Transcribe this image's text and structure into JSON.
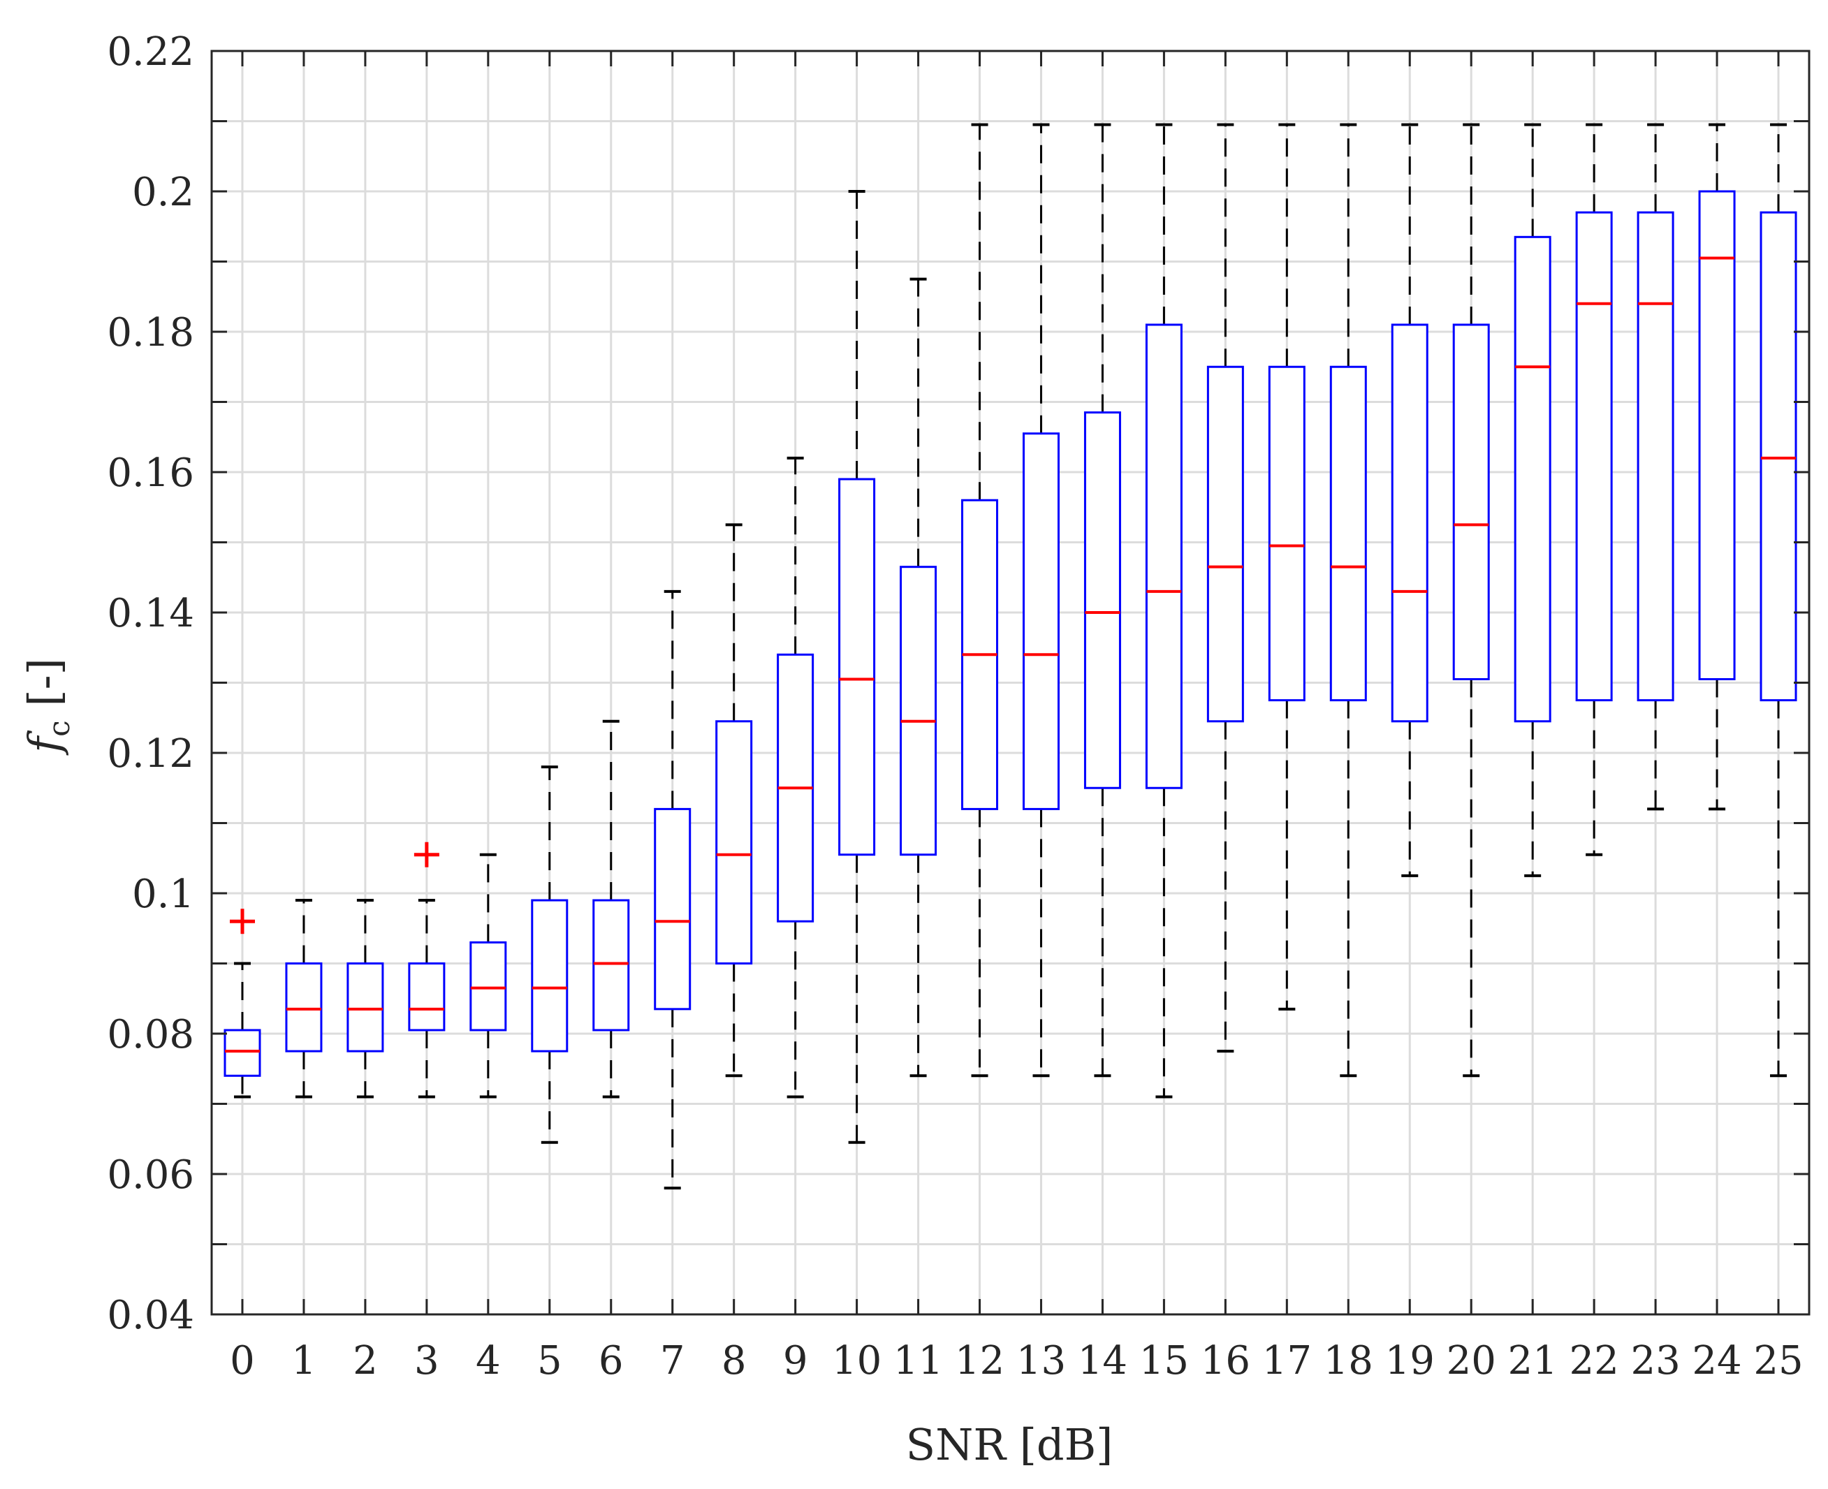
{
  "chart_data": {
    "type": "box",
    "xlabel": "SNR [dB]",
    "ylabel": {
      "main": "f",
      "sub": "c",
      "suffix": " [-]"
    },
    "ylim": [
      0.04,
      0.22
    ],
    "yticks": [
      "0.04",
      "0.06",
      "0.08",
      "0.1",
      "0.12",
      "0.14",
      "0.16",
      "0.18",
      "0.2",
      "0.22"
    ],
    "ytick_values": [
      0.04,
      0.06,
      0.08,
      0.1,
      0.12,
      0.14,
      0.16,
      0.18,
      0.2,
      0.22
    ],
    "y_minor_step": 0.01,
    "categories": [
      "0",
      "1",
      "2",
      "3",
      "4",
      "5",
      "6",
      "7",
      "8",
      "9",
      "10",
      "11",
      "12",
      "13",
      "14",
      "15",
      "16",
      "17",
      "18",
      "19",
      "20",
      "21",
      "22",
      "23",
      "24",
      "25"
    ],
    "grid": true,
    "colors": {
      "box": "#0000ff",
      "median": "#ff0000",
      "whisker": "#000000",
      "outlier": "#ff0000",
      "grid": "#dcdcdc",
      "axis": "#262626"
    },
    "boxes": [
      {
        "x": "0",
        "whisker_low": 0.071,
        "q1": 0.074,
        "median": 0.0775,
        "q3": 0.0805,
        "whisker_high": 0.09,
        "outliers": [
          0.096
        ]
      },
      {
        "x": "1",
        "whisker_low": 0.071,
        "q1": 0.0775,
        "median": 0.0835,
        "q3": 0.09,
        "whisker_high": 0.099,
        "outliers": []
      },
      {
        "x": "2",
        "whisker_low": 0.071,
        "q1": 0.0775,
        "median": 0.0835,
        "q3": 0.09,
        "whisker_high": 0.099,
        "outliers": []
      },
      {
        "x": "3",
        "whisker_low": 0.071,
        "q1": 0.0805,
        "median": 0.0835,
        "q3": 0.09,
        "whisker_high": 0.099,
        "outliers": [
          0.1055
        ]
      },
      {
        "x": "4",
        "whisker_low": 0.071,
        "q1": 0.0805,
        "median": 0.0865,
        "q3": 0.093,
        "whisker_high": 0.1055,
        "outliers": []
      },
      {
        "x": "5",
        "whisker_low": 0.0645,
        "q1": 0.0775,
        "median": 0.0865,
        "q3": 0.099,
        "whisker_high": 0.118,
        "outliers": []
      },
      {
        "x": "6",
        "whisker_low": 0.071,
        "q1": 0.0805,
        "median": 0.09,
        "q3": 0.099,
        "whisker_high": 0.1245,
        "outliers": []
      },
      {
        "x": "7",
        "whisker_low": 0.058,
        "q1": 0.0835,
        "median": 0.096,
        "q3": 0.112,
        "whisker_high": 0.143,
        "outliers": []
      },
      {
        "x": "8",
        "whisker_low": 0.074,
        "q1": 0.09,
        "median": 0.1055,
        "q3": 0.1245,
        "whisker_high": 0.1525,
        "outliers": []
      },
      {
        "x": "9",
        "whisker_low": 0.071,
        "q1": 0.096,
        "median": 0.115,
        "q3": 0.134,
        "whisker_high": 0.162,
        "outliers": []
      },
      {
        "x": "10",
        "whisker_low": 0.0645,
        "q1": 0.1055,
        "median": 0.1305,
        "q3": 0.159,
        "whisker_high": 0.2,
        "outliers": []
      },
      {
        "x": "11",
        "whisker_low": 0.074,
        "q1": 0.1055,
        "median": 0.1245,
        "q3": 0.1465,
        "whisker_high": 0.1875,
        "outliers": []
      },
      {
        "x": "12",
        "whisker_low": 0.074,
        "q1": 0.112,
        "median": 0.134,
        "q3": 0.156,
        "whisker_high": 0.2095,
        "outliers": []
      },
      {
        "x": "13",
        "whisker_low": 0.074,
        "q1": 0.112,
        "median": 0.134,
        "q3": 0.1655,
        "whisker_high": 0.2095,
        "outliers": []
      },
      {
        "x": "14",
        "whisker_low": 0.074,
        "q1": 0.115,
        "median": 0.14,
        "q3": 0.1685,
        "whisker_high": 0.2095,
        "outliers": []
      },
      {
        "x": "15",
        "whisker_low": 0.071,
        "q1": 0.115,
        "median": 0.143,
        "q3": 0.181,
        "whisker_high": 0.2095,
        "outliers": []
      },
      {
        "x": "16",
        "whisker_low": 0.0775,
        "q1": 0.1245,
        "median": 0.1465,
        "q3": 0.175,
        "whisker_high": 0.2095,
        "outliers": []
      },
      {
        "x": "17",
        "whisker_low": 0.0835,
        "q1": 0.1275,
        "median": 0.1495,
        "q3": 0.175,
        "whisker_high": 0.2095,
        "outliers": []
      },
      {
        "x": "18",
        "whisker_low": 0.074,
        "q1": 0.1275,
        "median": 0.1465,
        "q3": 0.175,
        "whisker_high": 0.2095,
        "outliers": []
      },
      {
        "x": "19",
        "whisker_low": 0.1025,
        "q1": 0.1245,
        "median": 0.143,
        "q3": 0.181,
        "whisker_high": 0.2095,
        "outliers": []
      },
      {
        "x": "20",
        "whisker_low": 0.074,
        "q1": 0.1305,
        "median": 0.1525,
        "q3": 0.181,
        "whisker_high": 0.2095,
        "outliers": []
      },
      {
        "x": "21",
        "whisker_low": 0.1025,
        "q1": 0.1245,
        "median": 0.175,
        "q3": 0.1935,
        "whisker_high": 0.2095,
        "outliers": []
      },
      {
        "x": "22",
        "whisker_low": 0.1055,
        "q1": 0.1275,
        "median": 0.184,
        "q3": 0.197,
        "whisker_high": 0.2095,
        "outliers": []
      },
      {
        "x": "23",
        "whisker_low": 0.112,
        "q1": 0.1275,
        "median": 0.184,
        "q3": 0.197,
        "whisker_high": 0.2095,
        "outliers": []
      },
      {
        "x": "24",
        "whisker_low": 0.112,
        "q1": 0.1305,
        "median": 0.1905,
        "q3": 0.2,
        "whisker_high": 0.2095,
        "outliers": []
      },
      {
        "x": "25",
        "whisker_low": 0.074,
        "q1": 0.1275,
        "median": 0.162,
        "q3": 0.197,
        "whisker_high": 0.2095,
        "outliers": []
      }
    ]
  }
}
